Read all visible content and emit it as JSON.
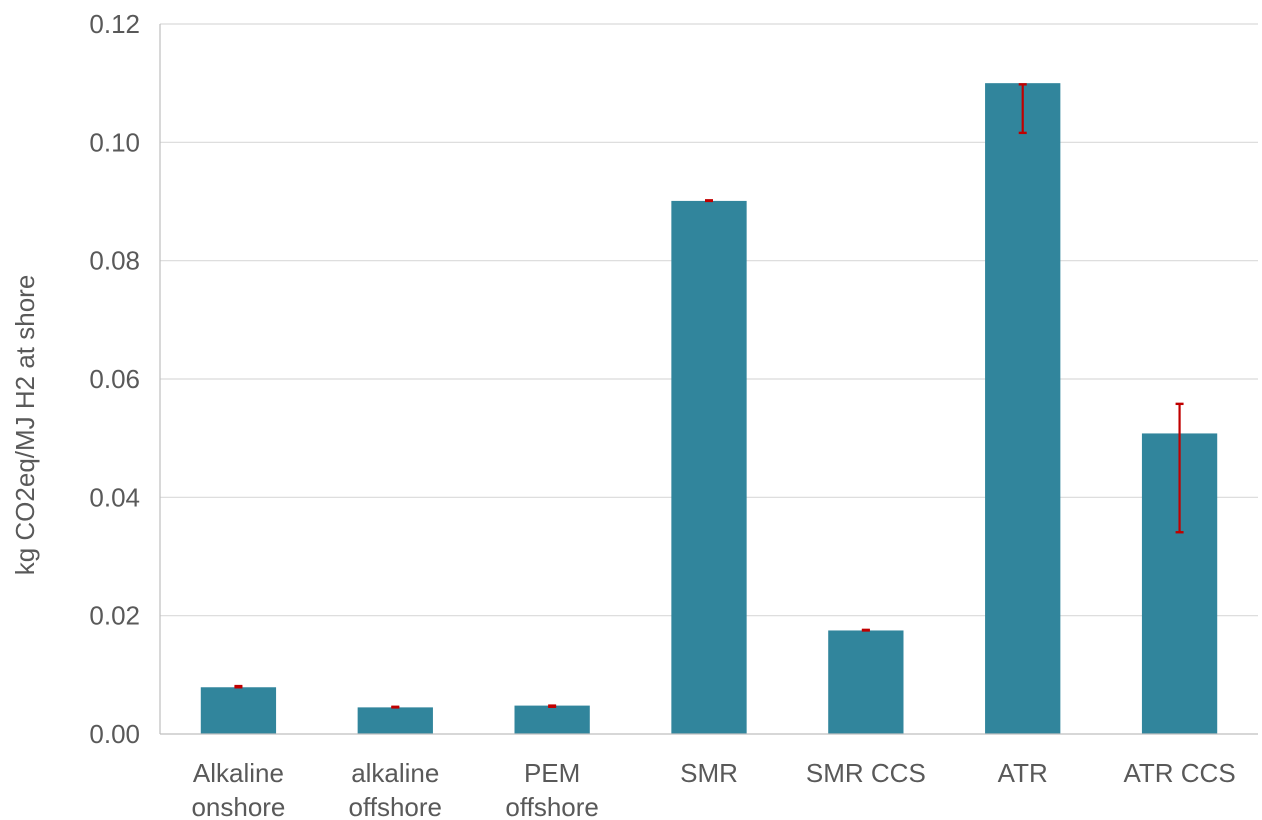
{
  "chart_data": {
    "type": "bar",
    "title": "",
    "xlabel": "",
    "ylabel": "kg CO2eq/MJ H2 at shore",
    "ylim": [
      0,
      0.12
    ],
    "yticks": [
      "0.00",
      "0.02",
      "0.04",
      "0.06",
      "0.08",
      "0.10",
      "0.12"
    ],
    "grid": true,
    "legend": "none",
    "categories": [
      [
        "Alkaline",
        "onshore"
      ],
      [
        "alkaline",
        "offshore"
      ],
      [
        "PEM",
        "offshore"
      ],
      [
        "SMR"
      ],
      [
        "SMR CCS"
      ],
      [
        "ATR"
      ],
      [
        "ATR CCS"
      ]
    ],
    "values": [
      0.0079,
      0.0045,
      0.0048,
      0.0901,
      0.0175,
      0.11,
      0.0508
    ],
    "error_low": [
      0.0079,
      0.0045,
      0.0046,
      0.0901,
      0.0175,
      0.1016,
      0.0341
    ],
    "error_high": [
      0.0081,
      0.0046,
      0.0048,
      0.0902,
      0.0176,
      0.1098,
      0.0558
    ],
    "colors": {
      "bar": "#31859C",
      "error_bar": "#C00000",
      "grid": "#D9D9D9",
      "axis": "#BFBFBF",
      "text": "#595959"
    }
  }
}
